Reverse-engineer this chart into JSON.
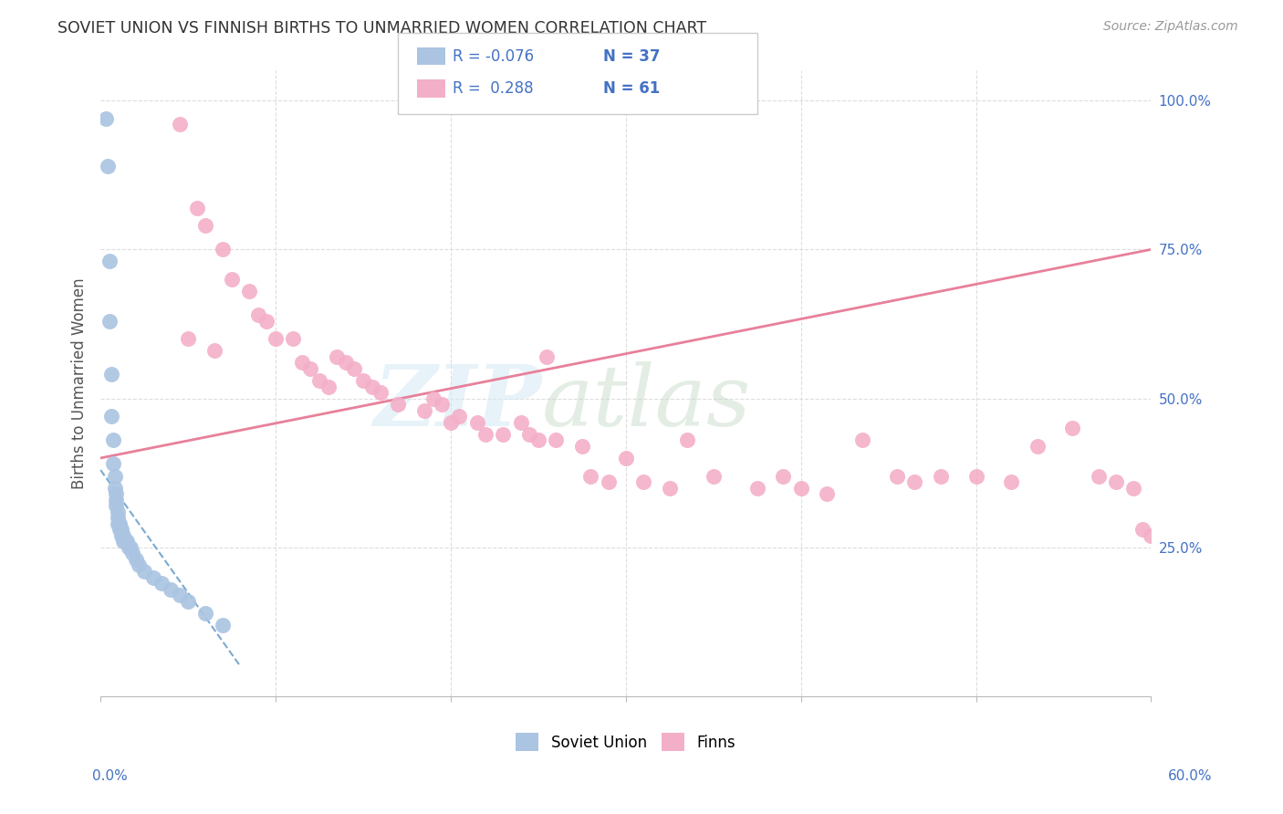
{
  "title": "SOVIET UNION VS FINNISH BIRTHS TO UNMARRIED WOMEN CORRELATION CHART",
  "source": "Source: ZipAtlas.com",
  "ylabel": "Births to Unmarried Women",
  "xmin": 0.0,
  "xmax": 60.0,
  "ymin": 0.0,
  "ymax": 105.0,
  "soviet_color": "#aac4e2",
  "finn_color": "#f4afc8",
  "soviet_trend_color": "#7aaad0",
  "finn_trend_color": "#e8809a",
  "grid_color": "#dddddd",
  "spine_color": "#bbbbbb",
  "right_tick_color": "#4472c4",
  "title_color": "#333333",
  "source_color": "#999999",
  "soviet_x": [
    0.3,
    0.4,
    0.5,
    0.5,
    0.6,
    0.6,
    0.7,
    0.7,
    0.8,
    0.8,
    0.9,
    0.9,
    0.9,
    1.0,
    1.0,
    1.0,
    1.1,
    1.1,
    1.2,
    1.2,
    1.3,
    1.3,
    1.4,
    1.5,
    1.6,
    1.7,
    1.8,
    2.0,
    2.2,
    2.5,
    3.0,
    3.5,
    4.0,
    4.5,
    5.0,
    6.0,
    7.0
  ],
  "soviet_y": [
    97,
    89,
    73,
    63,
    54,
    47,
    43,
    39,
    37,
    35,
    34,
    33,
    32,
    31,
    30,
    29,
    29,
    28,
    28,
    27,
    27,
    26,
    26,
    26,
    25,
    25,
    24,
    23,
    22,
    21,
    20,
    19,
    18,
    17,
    16,
    14,
    12
  ],
  "finn_x": [
    4.5,
    5.5,
    6.0,
    7.0,
    7.5,
    8.5,
    9.0,
    9.5,
    10.0,
    11.0,
    11.5,
    12.0,
    12.5,
    13.0,
    13.5,
    14.0,
    14.5,
    15.0,
    15.5,
    16.0,
    17.0,
    18.5,
    19.0,
    19.5,
    20.0,
    20.5,
    21.5,
    22.0,
    23.0,
    24.0,
    24.5,
    25.0,
    26.0,
    27.5,
    28.0,
    29.0,
    30.0,
    31.0,
    32.5,
    33.5,
    35.0,
    37.5,
    39.0,
    40.0,
    41.5,
    43.5,
    45.5,
    46.5,
    48.0,
    50.0,
    52.0,
    53.5,
    55.5,
    57.0,
    58.0,
    59.0,
    59.5,
    60.0,
    5.0,
    6.5,
    25.5
  ],
  "finn_y": [
    96,
    82,
    79,
    75,
    70,
    68,
    64,
    63,
    60,
    60,
    56,
    55,
    53,
    52,
    57,
    56,
    55,
    53,
    52,
    51,
    49,
    48,
    50,
    49,
    46,
    47,
    46,
    44,
    44,
    46,
    44,
    43,
    43,
    42,
    37,
    36,
    40,
    36,
    35,
    43,
    37,
    35,
    37,
    35,
    34,
    43,
    37,
    36,
    37,
    37,
    36,
    42,
    45,
    37,
    36,
    35,
    28,
    27,
    60,
    58,
    57
  ],
  "finn_trend_x0": 0.0,
  "finn_trend_y0": 40.0,
  "finn_trend_x1": 60.0,
  "finn_trend_y1": 75.0,
  "soviet_trend_x0": 0.0,
  "soviet_trend_y0": 38.0,
  "soviet_trend_x1": 8.0,
  "soviet_trend_y1": 5.0,
  "legend_items": [
    {
      "label": "R = -0.076",
      "n": "N = 37",
      "color": "#aac4e2"
    },
    {
      "label": "R =  0.288",
      "n": "N = 61",
      "color": "#f4afc8"
    }
  ]
}
